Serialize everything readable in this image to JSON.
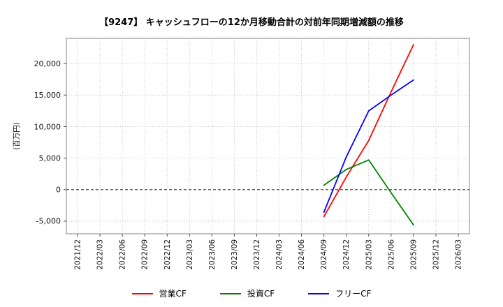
{
  "chart_data": {
    "type": "line",
    "title": "【9247】 キャッシュフローの12か月移動合計の対前年同期増減額の推移",
    "ylabel": "(百万円)",
    "xlabel": "",
    "categories": [
      "2021/12",
      "2022/03",
      "2022/06",
      "2022/09",
      "2022/12",
      "2023/03",
      "2023/06",
      "2023/09",
      "2023/12",
      "2024/03",
      "2024/06",
      "2024/09",
      "2024/12",
      "2025/03",
      "2025/06",
      "2025/09",
      "2025/12",
      "2026/03"
    ],
    "series": [
      {
        "key": "operating-cf",
        "name": "営業CF",
        "color": "#ff0000",
        "values": [
          null,
          null,
          null,
          null,
          null,
          null,
          null,
          null,
          null,
          null,
          null,
          -4300,
          2000,
          7800,
          15500,
          23000,
          null,
          null
        ]
      },
      {
        "key": "investing-cf",
        "name": "投資CF",
        "color": "#008000",
        "values": [
          null,
          null,
          null,
          null,
          null,
          null,
          null,
          null,
          null,
          null,
          null,
          700,
          3200,
          4700,
          -500,
          -5600,
          null,
          null
        ]
      },
      {
        "key": "free-cf",
        "name": "フリーCF",
        "color": "#0000ff",
        "values": [
          null,
          null,
          null,
          null,
          null,
          null,
          null,
          null,
          null,
          null,
          null,
          -3600,
          5200,
          12500,
          15000,
          17400,
          null,
          null
        ]
      }
    ],
    "ylim": [
      -7000,
      24000
    ],
    "yticks": [
      -5000,
      0,
      5000,
      10000,
      15000,
      20000
    ],
    "grid": true,
    "grid_style": "dotted",
    "legend_position": "bottom"
  }
}
